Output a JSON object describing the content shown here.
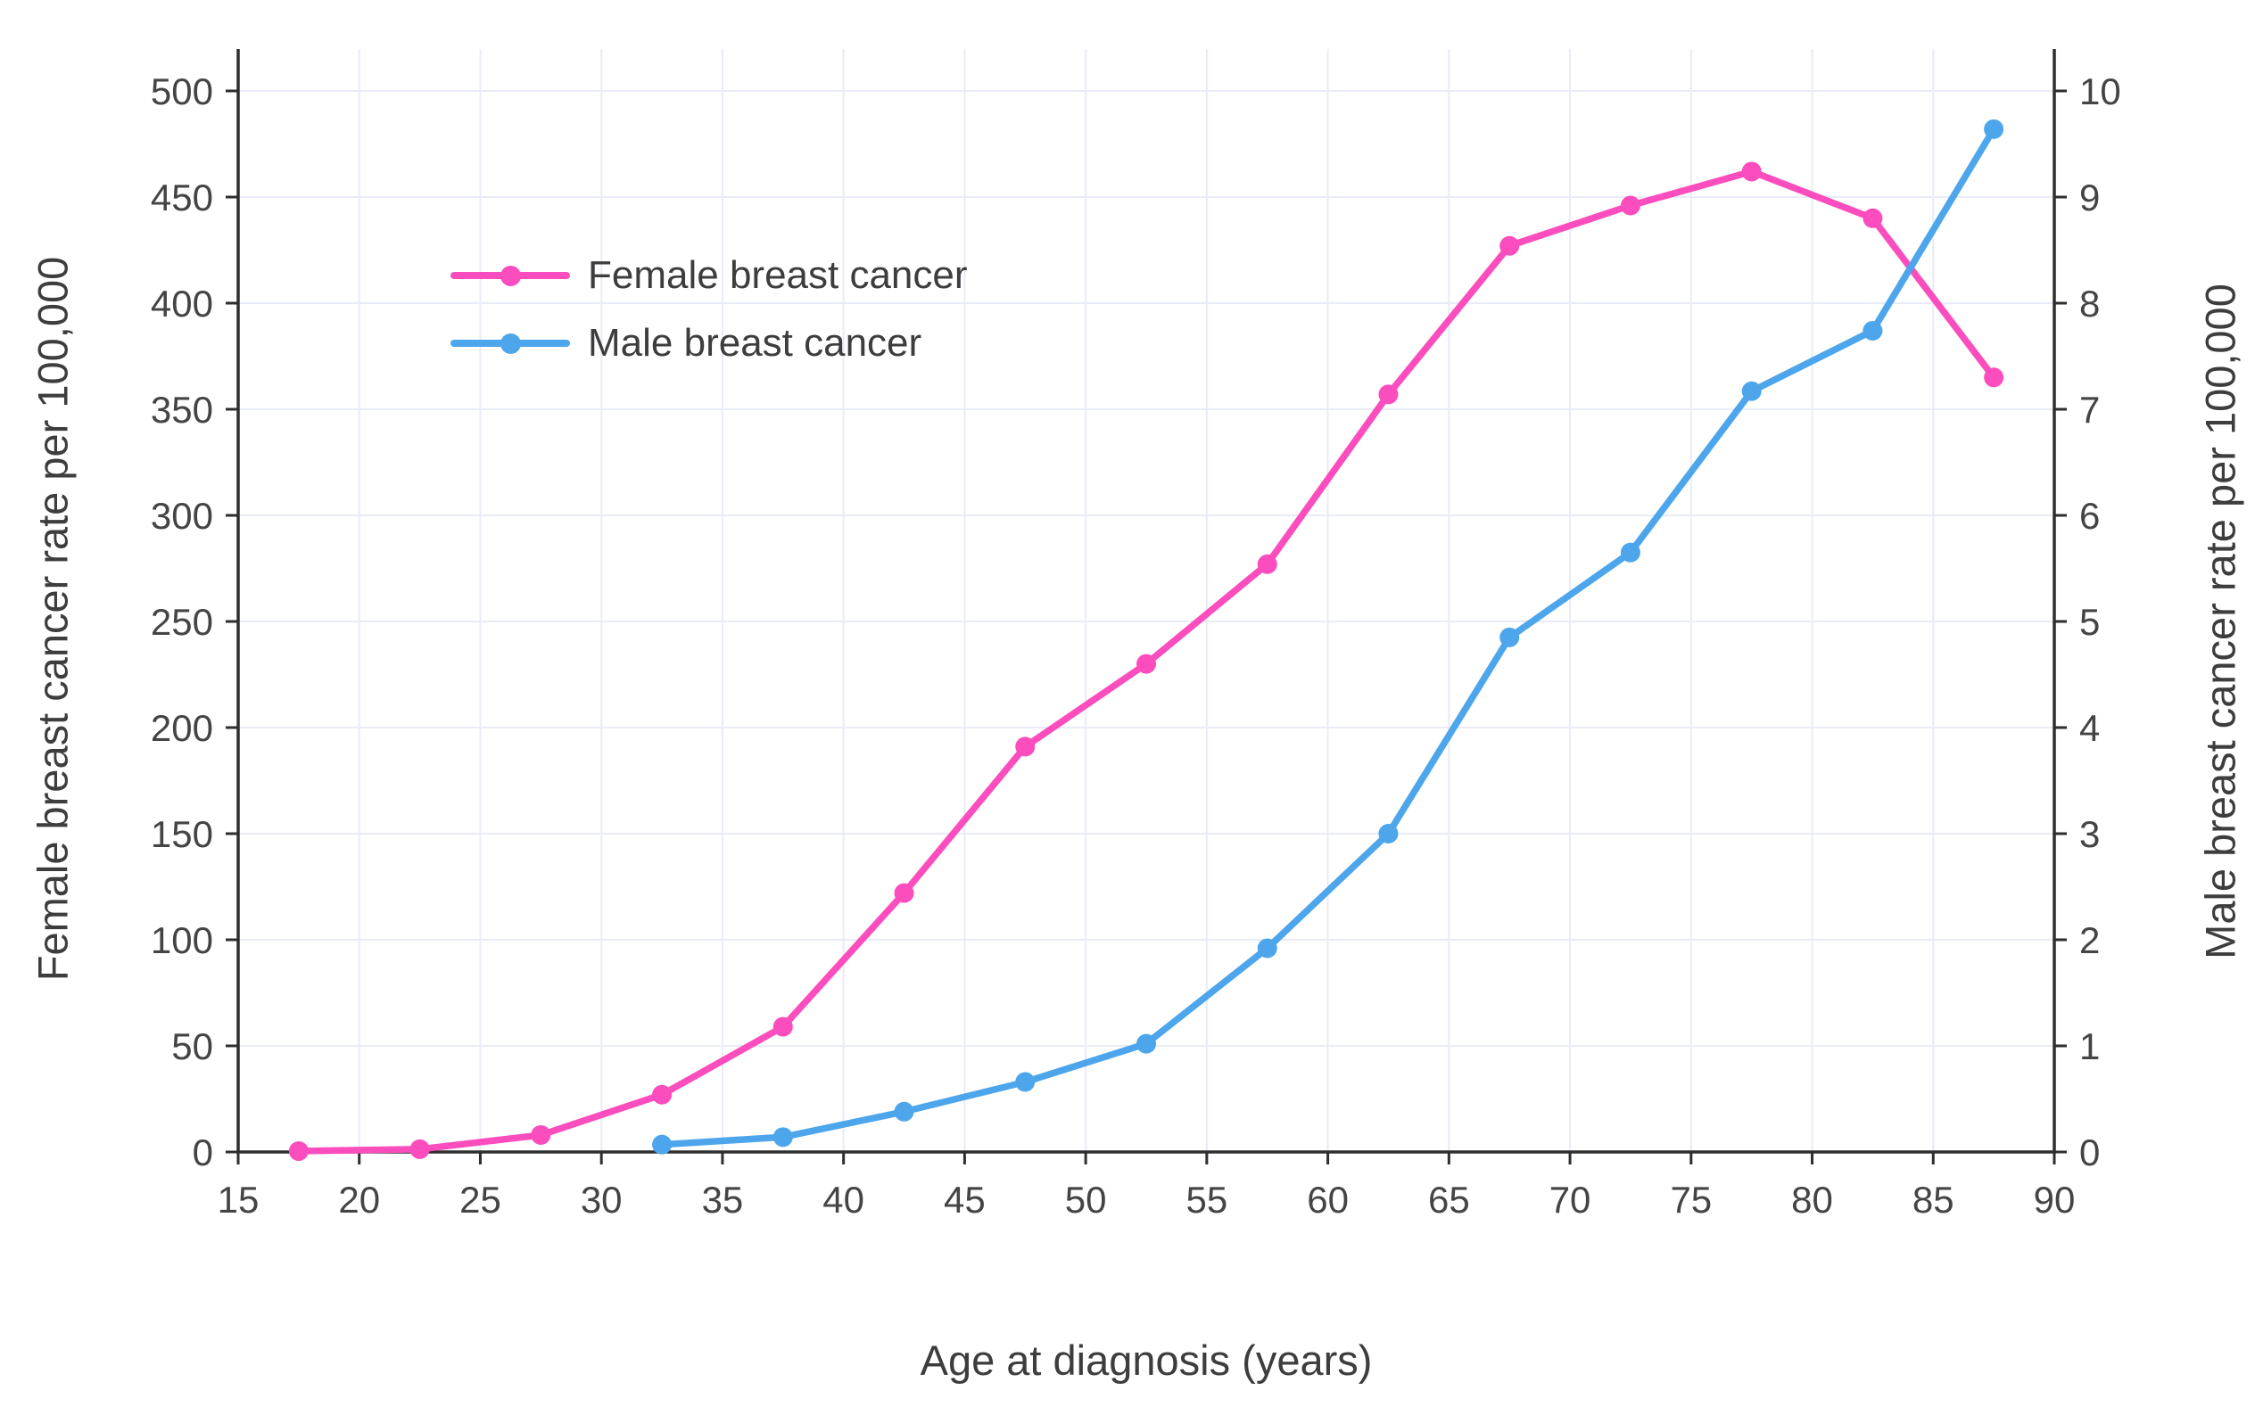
{
  "chart_data": {
    "type": "line",
    "title": "",
    "xlabel": "Age at diagnosis (years)",
    "ylabel_left": "Female breast cancer rate per 100,000",
    "ylabel_right": "Male breast cancer rate per 100,000",
    "xlim": [
      15,
      90
    ],
    "x_ticks": [
      15,
      20,
      25,
      30,
      35,
      40,
      45,
      50,
      55,
      60,
      65,
      70,
      75,
      80,
      85,
      90
    ],
    "left_axis": {
      "label": "Female breast cancer rate per 100,000",
      "lim": [
        0,
        500
      ],
      "ticks": [
        0,
        50,
        100,
        150,
        200,
        250,
        300,
        350,
        400,
        450,
        500
      ]
    },
    "right_axis": {
      "label": "Male breast cancer rate per 100,000",
      "lim": [
        0,
        10
      ],
      "ticks": [
        0,
        1,
        2,
        3,
        4,
        5,
        6,
        7,
        8,
        9,
        10
      ]
    },
    "grid": true,
    "grid_color": "#e9ecf7",
    "axis_line_color": "#2e2e2e",
    "tick_label_color": "#444444",
    "legend_position": "inside-top-left",
    "series": [
      {
        "name": "Female breast cancer",
        "color": "#fb4dbd",
        "axis": "left",
        "x": [
          17.5,
          22.5,
          27.5,
          32.5,
          37.5,
          42.5,
          47.5,
          52.5,
          57.5,
          62.5,
          67.5,
          72.5,
          77.5,
          82.5,
          87.5
        ],
        "y": [
          0.4,
          1.3,
          8,
          27,
          59,
          122,
          191,
          230,
          277,
          357,
          427,
          446,
          462,
          440,
          365
        ]
      },
      {
        "name": "Male breast cancer",
        "color": "#4da6ec",
        "axis": "right",
        "x": [
          32.5,
          37.5,
          42.5,
          47.5,
          52.5,
          57.5,
          62.5,
          67.5,
          72.5,
          77.5,
          82.5,
          87.5
        ],
        "y": [
          0.07,
          0.14,
          0.38,
          0.66,
          1.02,
          1.92,
          3.0,
          4.85,
          5.65,
          7.17,
          7.74,
          9.64
        ]
      }
    ]
  }
}
